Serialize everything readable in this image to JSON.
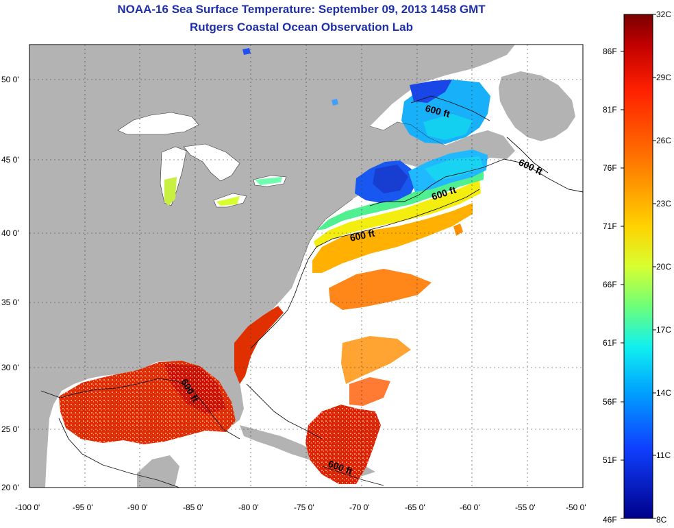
{
  "header": {
    "title": "NOAA-16 Sea Surface Temperature:  September 09, 2013 1458 GMT",
    "subtitle": "Rutgers Coastal Ocean Observation Lab"
  },
  "axes": {
    "lat_ticks": [
      "50 0'",
      "45 0'",
      "40 0'",
      "35 0'",
      "30 0'",
      "25 0'",
      "20 0'"
    ],
    "lon_ticks": [
      "-100 0'",
      "-95 0'",
      "-90 0'",
      "-85 0'",
      "-80 0'",
      "-75 0'",
      "-70 0'",
      "-65 0'",
      "-60 0'",
      "-55 0'",
      "-50 0'"
    ]
  },
  "contours": [
    {
      "label": "600 ft",
      "loc": "gulf_of_st_lawrence"
    },
    {
      "label": "600 ft",
      "loc": "nova_scotia_east"
    },
    {
      "label": "600 ft",
      "loc": "georges_bank"
    },
    {
      "label": "600 ft",
      "loc": "mid_atlantic"
    },
    {
      "label": "600 ft",
      "loc": "florida_west"
    },
    {
      "label": "600 ft",
      "loc": "caribbean"
    }
  ],
  "colorbar": {
    "celsius": [
      "32C",
      "29C",
      "26C",
      "23C",
      "20C",
      "17C",
      "14C",
      "11C",
      "8C"
    ],
    "fahrenheit": [
      "86F",
      "81F",
      "76F",
      "71F",
      "66F",
      "61F",
      "56F",
      "51F",
      "46F"
    ],
    "colors": [
      "#7a0000",
      "#d40000",
      "#ff4a00",
      "#ff9e00",
      "#ffee00",
      "#9cff5c",
      "#20ffe0",
      "#00a8ff",
      "#1040ff",
      "#00008a"
    ]
  },
  "colors": {
    "land": "#b3b3b3",
    "ocean_nodata": "#ffffff",
    "title": "#1f2fa8"
  }
}
